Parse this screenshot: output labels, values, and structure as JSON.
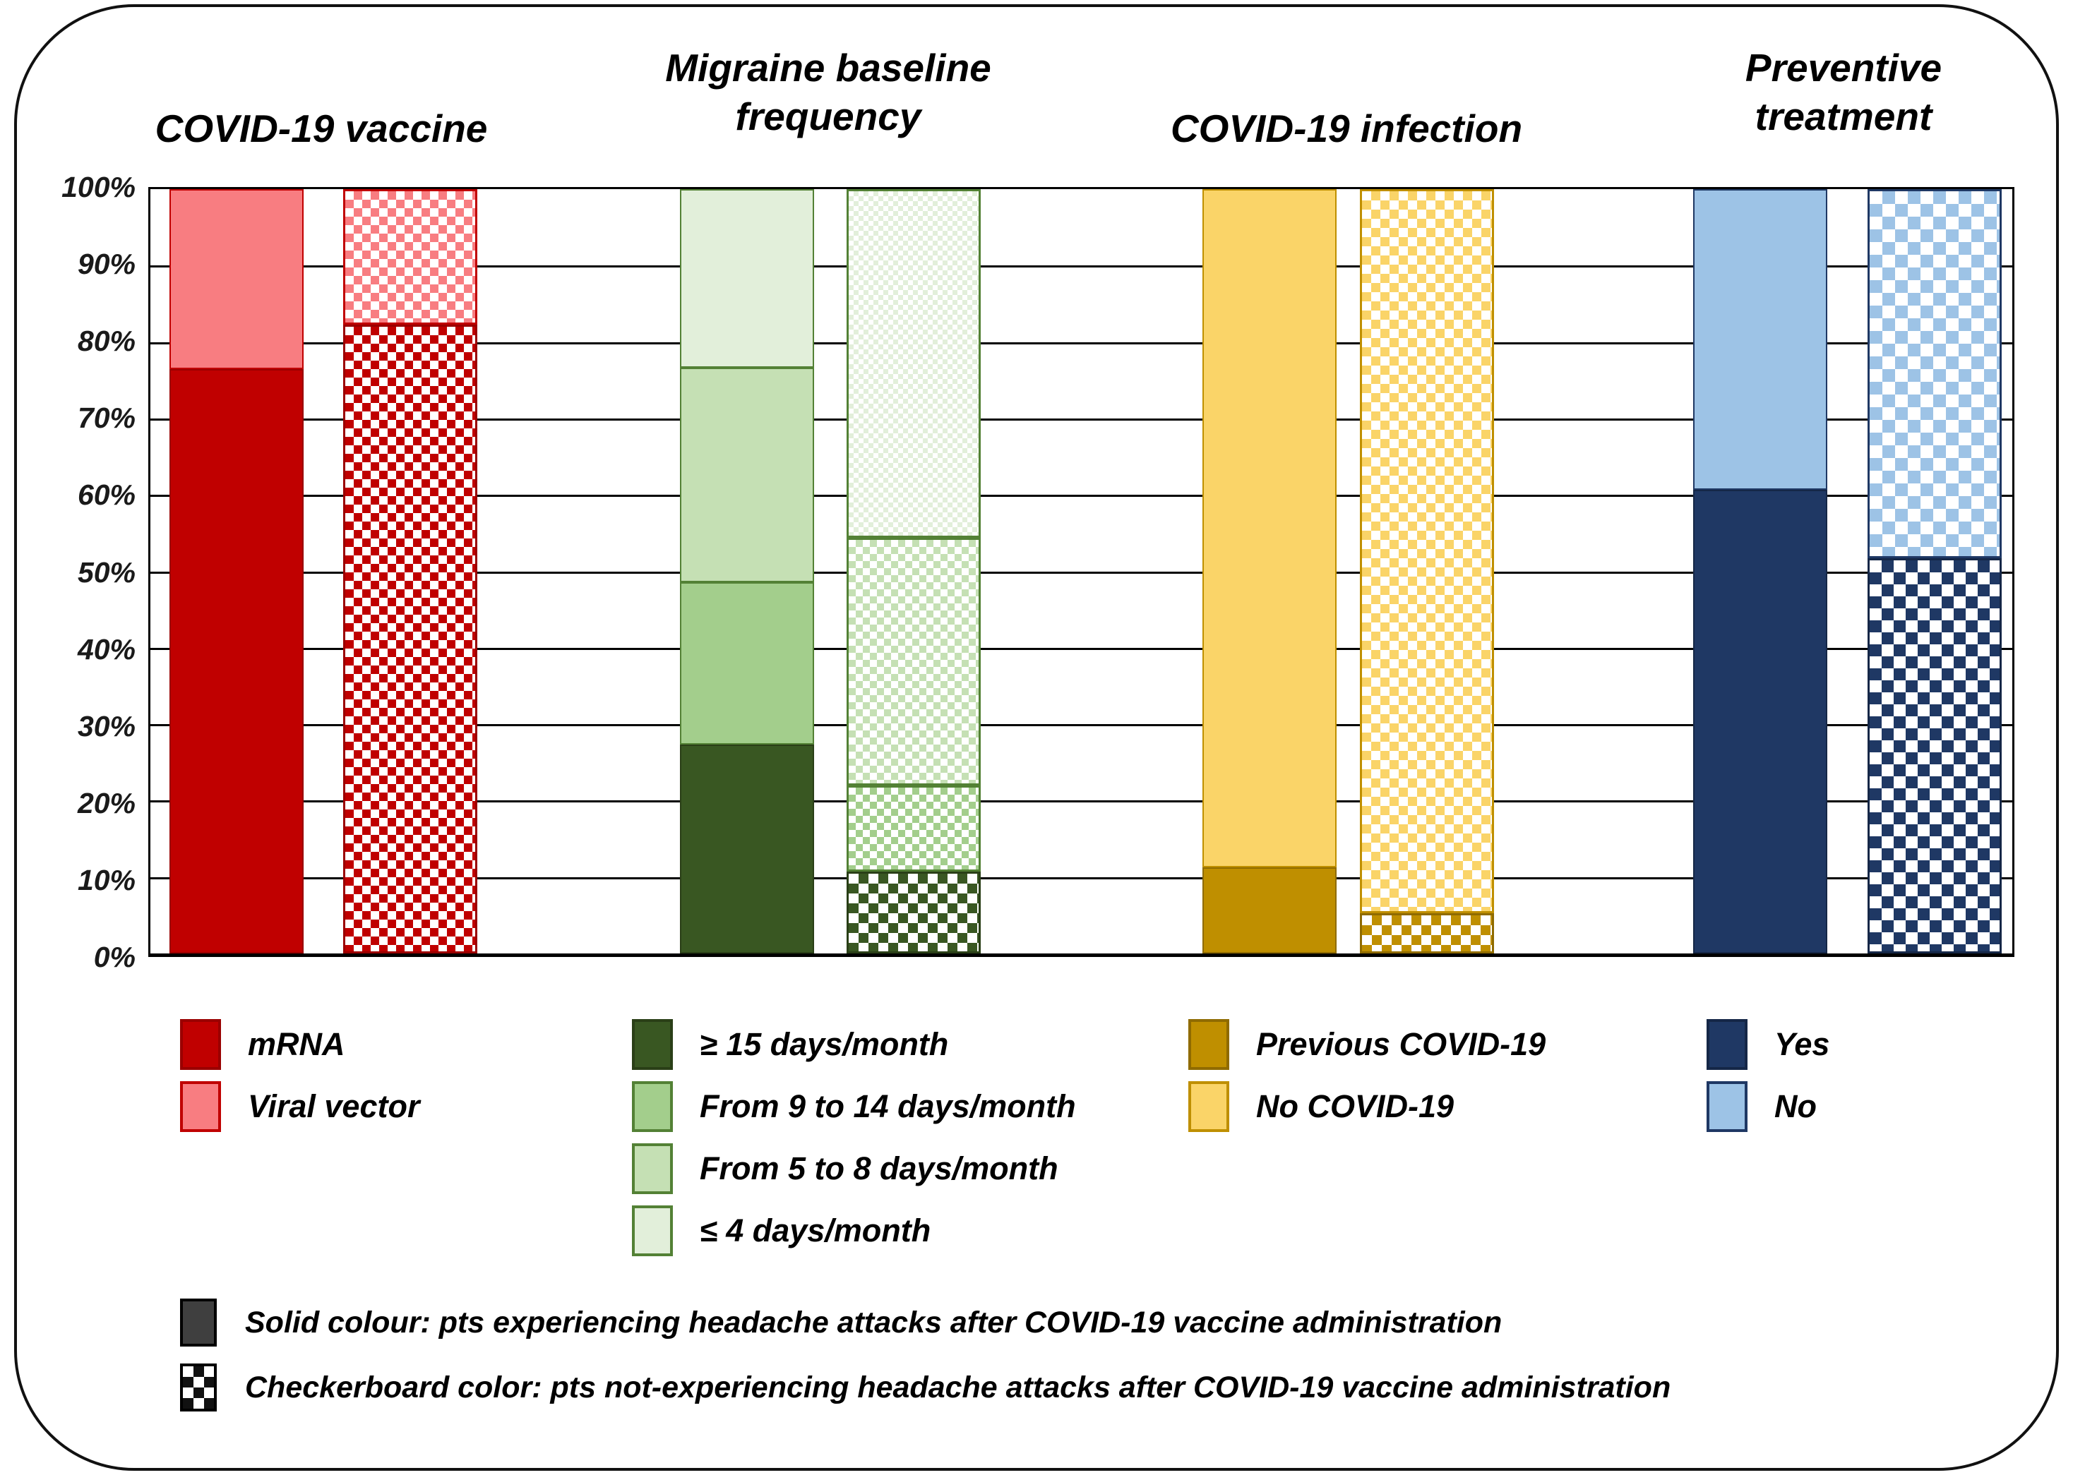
{
  "figure": {
    "y_ticks": [
      "100%",
      "90%",
      "80%",
      "70%",
      "60%",
      "50%",
      "40%",
      "30%",
      "20%",
      "10%",
      "0%"
    ],
    "notes": [
      {
        "swatch": "solid",
        "fill": "#3F3F3F",
        "border": "#000000",
        "text": "Solid colour: pts experiencing headache attacks after COVID-19 vaccine administration"
      },
      {
        "swatch": "checkerboard",
        "fill": "#111111",
        "border": "#000000",
        "text": "Checkerboard color: pts not-experiencing headache attacks after COVID-19 vaccine administration"
      }
    ]
  },
  "chart_data": {
    "type": "bar",
    "subtype": "100%-stacked-columns",
    "unit": "percent of patients",
    "ylim": [
      0,
      100
    ],
    "grid": "horizontal lines every 10%",
    "legend_position": "below chart, one column per group",
    "bar_variants": {
      "solid": "pts experiencing headache attacks after COVID-19 vaccine administration",
      "checkerboard": "pts not-experiencing headache attacks after COVID-19 vaccine administration"
    },
    "groups": [
      {
        "title_lines": [
          "COVID-19 vaccine"
        ],
        "categories": [
          {
            "label": "mRNA",
            "fill": "#C00000",
            "border": "#9A0000",
            "checker_tile": 24
          },
          {
            "label": "Viral vector",
            "fill": "#F87D81",
            "border": "#C00000",
            "checker_tile": 24
          }
        ],
        "bars": [
          {
            "variant": "solid",
            "values": [
              76.5,
              23.5
            ]
          },
          {
            "variant": "checkerboard",
            "values": [
              82.3,
              17.7
            ]
          }
        ]
      },
      {
        "title_lines": [
          "Migraine baseline",
          "frequency"
        ],
        "categories": [
          {
            "label": "≥ 15 days/month",
            "fill": "#395722",
            "border": "#2A3F17",
            "checker_tile": 28
          },
          {
            "label": "From 9 to 14 days/month",
            "fill": "#A3CE8C",
            "border": "#538135",
            "checker_tile": 20
          },
          {
            "label": "From 5 to 8 days/month",
            "fill": "#C5E0B4",
            "border": "#538135",
            "checker_tile": 20
          },
          {
            "label": "≤ 4 days/month",
            "fill": "#E2EFDA",
            "border": "#538135",
            "checker_tile": 14
          }
        ],
        "bars": [
          {
            "variant": "solid",
            "values": [
              27.3,
              21.3,
              28.0,
              23.4
            ]
          },
          {
            "variant": "checkerboard",
            "values": [
              10.7,
              11.3,
              32.4,
              45.6
            ]
          }
        ]
      },
      {
        "title_lines": [
          "COVID-19 infection"
        ],
        "categories": [
          {
            "label": "Previous COVID-19",
            "fill": "#BF8F00",
            "border": "#8F6B00",
            "checker_tile": 28
          },
          {
            "label": "No COVID-19",
            "fill": "#FAD468",
            "border": "#BF8F00",
            "checker_tile": 26
          }
        ],
        "bars": [
          {
            "variant": "solid",
            "values": [
              11.3,
              88.7
            ]
          },
          {
            "variant": "checkerboard",
            "values": [
              5.3,
              94.7
            ]
          }
        ]
      },
      {
        "title_lines": [
          "Preventive",
          "treatment"
        ],
        "categories": [
          {
            "label": "Yes",
            "fill": "#1F3864",
            "border": "#152747",
            "checker_tile": 34
          },
          {
            "label": "No",
            "fill": "#9DC3E6",
            "border": "#1F3864",
            "checker_tile": 36
          }
        ],
        "bars": [
          {
            "variant": "solid",
            "values": [
              60.7,
              39.3
            ]
          },
          {
            "variant": "checkerboard",
            "values": [
              51.7,
              48.3
            ]
          }
        ]
      }
    ]
  }
}
